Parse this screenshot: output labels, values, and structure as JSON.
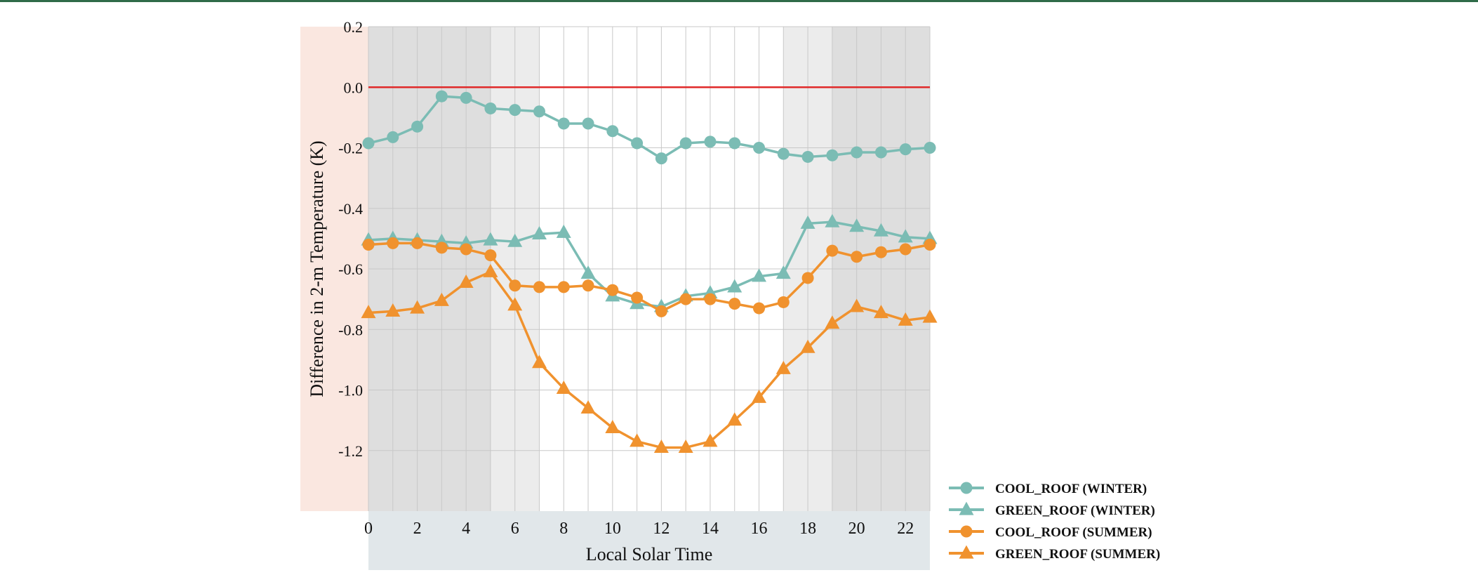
{
  "colors": {
    "teal": "#7bbcb4",
    "orange": "#f0922e",
    "zero_line": "#e02a2a",
    "night_shade": "#dedede",
    "twilight_shade": "#ececec",
    "yaxis_panel": "#fae7e0",
    "xaxis_panel": "#e1e7ea",
    "grid": "#c8c8c8"
  },
  "chart_data": {
    "type": "line",
    "title": "",
    "xlabel": "Local Solar Time",
    "ylabel": "Difference in 2-m Temperature (K)",
    "xlim": [
      0,
      23
    ],
    "ylim": [
      -1.4,
      0.2
    ],
    "xticks": [
      0,
      2,
      4,
      6,
      8,
      10,
      12,
      14,
      16,
      18,
      20,
      22
    ],
    "xtick_labels": [
      "0",
      "2",
      "4",
      "6",
      "8",
      "10",
      "12",
      "14",
      "16",
      "18",
      "20",
      "22"
    ],
    "yticks": [
      0.2,
      0.0,
      -0.2,
      -0.4,
      -0.6,
      -0.8,
      -1.0,
      -1.2
    ],
    "ytick_labels": [
      "0.2",
      "0.0",
      "-0.2",
      "-0.4",
      "-0.6",
      "-0.8",
      "-1.0",
      "-1.2"
    ],
    "grid": true,
    "reference_line": 0.0,
    "shaded_periods": [
      {
        "kind": "night",
        "from": 0,
        "to": 5
      },
      {
        "kind": "twilight",
        "from": 5,
        "to": 7
      },
      {
        "kind": "twilight",
        "from": 17,
        "to": 19
      },
      {
        "kind": "night",
        "from": 19,
        "to": 23
      }
    ],
    "legend_position": "bottom-right, outside plot",
    "x": [
      0,
      1,
      2,
      3,
      4,
      5,
      6,
      7,
      8,
      9,
      10,
      11,
      12,
      13,
      14,
      15,
      16,
      17,
      18,
      19,
      20,
      21,
      22,
      23
    ],
    "series": [
      {
        "name": "COOL_ROOF (WINTER)",
        "color": "#7bbcb4",
        "marker": "circle",
        "values": [
          -0.185,
          -0.165,
          -0.13,
          -0.03,
          -0.035,
          -0.07,
          -0.075,
          -0.08,
          -0.12,
          -0.12,
          -0.145,
          -0.185,
          -0.235,
          -0.185,
          -0.18,
          -0.185,
          -0.2,
          -0.22,
          -0.23,
          -0.225,
          -0.215,
          -0.215,
          -0.205,
          -0.2
        ]
      },
      {
        "name": "GREEN_ROOF (WINTER)",
        "color": "#7bbcb4",
        "marker": "triangle",
        "values": [
          -0.505,
          -0.5,
          -0.505,
          -0.51,
          -0.515,
          -0.505,
          -0.51,
          -0.485,
          -0.48,
          -0.615,
          -0.69,
          -0.715,
          -0.725,
          -0.69,
          -0.68,
          -0.66,
          -0.625,
          -0.615,
          -0.45,
          -0.445,
          -0.46,
          -0.475,
          -0.495,
          -0.5
        ]
      },
      {
        "name": "COOL_ROOF (SUMMER)",
        "color": "#f0922e",
        "marker": "circle",
        "values": [
          -0.52,
          -0.515,
          -0.515,
          -0.53,
          -0.535,
          -0.555,
          -0.655,
          -0.66,
          -0.66,
          -0.655,
          -0.67,
          -0.695,
          -0.74,
          -0.7,
          -0.7,
          -0.715,
          -0.73,
          -0.71,
          -0.63,
          -0.54,
          -0.56,
          -0.545,
          -0.535,
          -0.52
        ]
      },
      {
        "name": "GREEN_ROOF (SUMMER)",
        "color": "#f0922e",
        "marker": "triangle",
        "values": [
          -0.745,
          -0.74,
          -0.73,
          -0.705,
          -0.645,
          -0.61,
          -0.72,
          -0.91,
          -0.995,
          -1.06,
          -1.125,
          -1.17,
          -1.19,
          -1.19,
          -1.17,
          -1.1,
          -1.025,
          -0.93,
          -0.86,
          -0.78,
          -0.725,
          -0.745,
          -0.77,
          -0.76
        ]
      }
    ]
  }
}
